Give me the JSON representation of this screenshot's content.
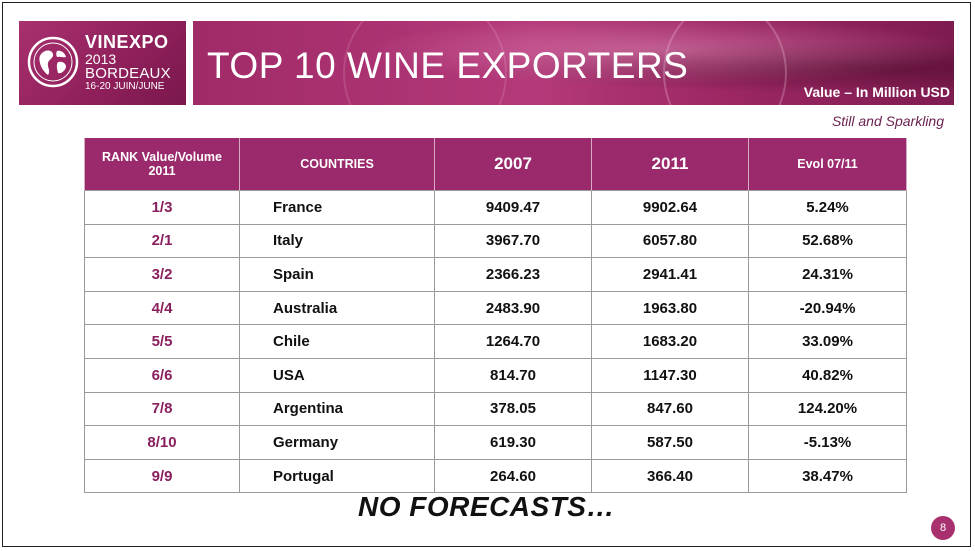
{
  "header": {
    "logo": {
      "brand": "VINEXPO",
      "year": "2013",
      "city": "BORDEAUX",
      "dates": "16-20 JUIN/JUNE",
      "icon": "globe-icon"
    },
    "title": "TOP 10 WINE EXPORTERS",
    "value_label": "Value – In Million USD",
    "subtitle": "Still and Sparkling"
  },
  "table": {
    "headers": {
      "rank": "RANK Value/Volume 2011",
      "countries": "COUNTRIES",
      "y2007": "2007",
      "y2011": "2011",
      "evol": "Evol 07/11"
    },
    "rows": [
      {
        "rank": "1/3",
        "country": "France",
        "v2007": "9409.47",
        "v2011": "9902.64",
        "evol": "5.24%"
      },
      {
        "rank": "2/1",
        "country": "Italy",
        "v2007": "3967.70",
        "v2011": "6057.80",
        "evol": "52.68%"
      },
      {
        "rank": "3/2",
        "country": "Spain",
        "v2007": "2366.23",
        "v2011": "2941.41",
        "evol": "24.31%"
      },
      {
        "rank": "4/4",
        "country": "Australia",
        "v2007": "2483.90",
        "v2011": "1963.80",
        "evol": "-20.94%"
      },
      {
        "rank": "5/5",
        "country": "Chile",
        "v2007": "1264.70",
        "v2011": "1683.20",
        "evol": "33.09%"
      },
      {
        "rank": "6/6",
        "country": "USA",
        "v2007": "814.70",
        "v2011": "1147.30",
        "evol": "40.82%"
      },
      {
        "rank": "7/8",
        "country": "Argentina",
        "v2007": "378.05",
        "v2011": "847.60",
        "evol": "124.20%"
      },
      {
        "rank": "8/10",
        "country": "Germany",
        "v2007": "619.30",
        "v2011": "587.50",
        "evol": "-5.13%"
      },
      {
        "rank": "9/9",
        "country": "Portugal",
        "v2007": "264.60",
        "v2011": "366.40",
        "evol": "38.47%"
      }
    ]
  },
  "footer": {
    "note": "NO FORECASTS…",
    "page_number": "8"
  },
  "colors": {
    "accent": "#9b2a6c",
    "rank_text": "#8a1f5e"
  }
}
